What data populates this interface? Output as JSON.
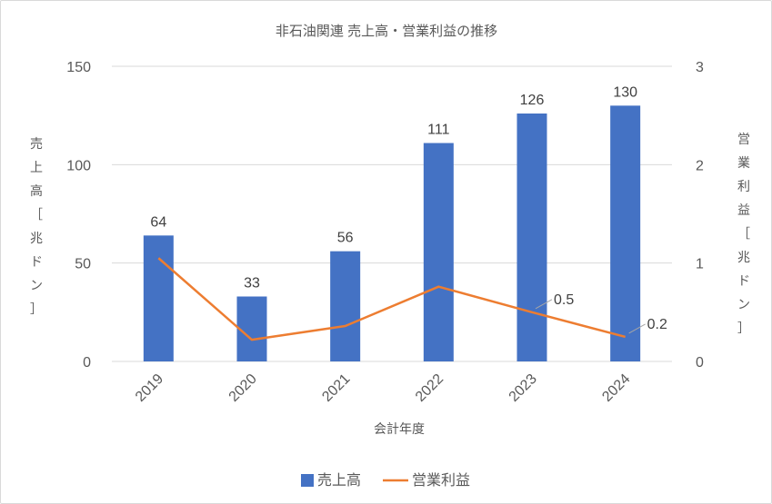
{
  "chart_data": {
    "type": "bar",
    "title": "非石油関連 売上高・営業利益の推移",
    "xlabel": "会計年度",
    "ylabel": "売上高［兆ドン］",
    "y2label": "営業利益［兆ドン］",
    "categories": [
      "2019",
      "2020",
      "2021",
      "2022",
      "2023",
      "2024"
    ],
    "ylim": [
      0,
      150
    ],
    "y_ticks": [
      "0",
      "50",
      "100",
      "150"
    ],
    "y2lim": [
      0,
      3
    ],
    "y2_ticks": [
      "0",
      "1",
      "2",
      "3"
    ],
    "grid": true,
    "legend_position": "bottom",
    "series": [
      {
        "name": "売上高",
        "type": "bar",
        "axis": "left",
        "color": "#4472C4",
        "values": [
          64,
          33,
          56,
          111,
          126,
          130
        ],
        "labels": [
          "64",
          "33",
          "56",
          "111",
          "126",
          "130"
        ]
      },
      {
        "name": "営業利益",
        "type": "line",
        "axis": "right",
        "color": "#ED7D31",
        "values": [
          1.05,
          0.22,
          0.36,
          0.76,
          0.5,
          0.25
        ],
        "labels": [
          "",
          "",
          "",
          "",
          "0.5",
          "0.2"
        ]
      }
    ]
  }
}
